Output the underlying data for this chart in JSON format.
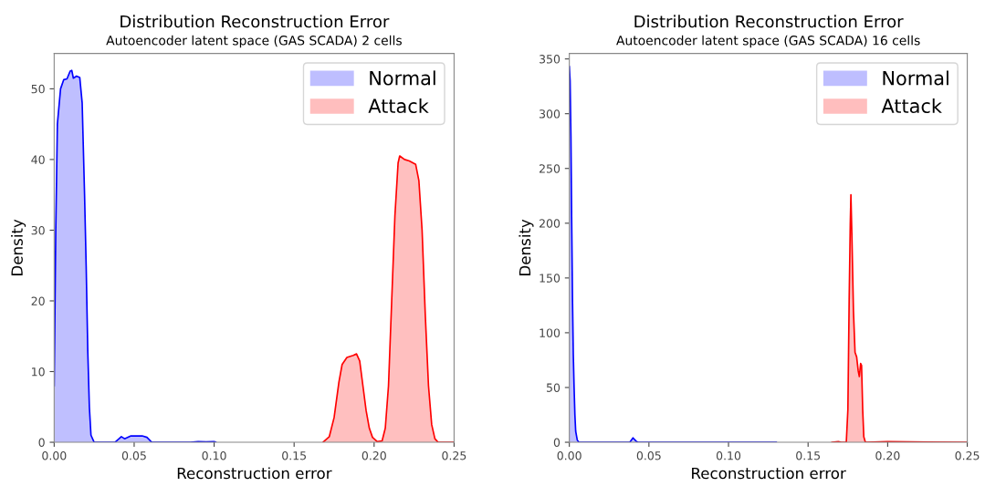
{
  "chart_data": [
    {
      "type": "area",
      "title": "Distribution Reconstruction Error",
      "subtitle": "Autoencoder latent space (GAS SCADA) 2 cells",
      "xlabel": "Reconstruction error",
      "ylabel": "Density",
      "xlim": [
        0,
        0.25
      ],
      "xticks": [
        {
          "value": 0,
          "label": "0.00"
        },
        {
          "value": 0.05,
          "label": "0.05"
        },
        {
          "value": 0.1,
          "label": "0.10"
        },
        {
          "value": 0.15,
          "label": "0.15"
        },
        {
          "value": 0.2,
          "label": "0.20"
        },
        {
          "value": 0.25,
          "label": "0.25"
        }
      ],
      "ylim": [
        0,
        55
      ],
      "yticks": [
        0,
        10,
        20,
        30,
        40,
        50
      ],
      "grid": false,
      "legend": "top right",
      "series": [
        {
          "name": "Normal",
          "color": "#0000ff",
          "x": [
            0,
            0.001,
            0.002,
            0.004,
            0.006,
            0.008,
            0.01,
            0.011,
            0.012,
            0.014,
            0.016,
            0.0175,
            0.019,
            0.02,
            0.021,
            0.022,
            0.023,
            0.025,
            0.038,
            0.042,
            0.044,
            0.048,
            0.052,
            0.055,
            0.058,
            0.061,
            0.085,
            0.09,
            0.095,
            0.1,
            0.101
          ],
          "values": [
            8,
            30,
            45,
            50,
            51.3,
            51.4,
            52.5,
            52.6,
            51.5,
            51.8,
            51.6,
            48,
            35,
            25,
            13,
            5,
            1,
            0,
            0,
            0.8,
            0.5,
            0.9,
            0.9,
            0.9,
            0.7,
            0,
            0,
            0.1,
            0.05,
            0.1,
            0
          ]
        },
        {
          "name": "Attack",
          "color": "#ff0000",
          "x": [
            0.168,
            0.172,
            0.175,
            0.178,
            0.18,
            0.183,
            0.187,
            0.189,
            0.191,
            0.193,
            0.195,
            0.197,
            0.199,
            0.202,
            0.205,
            0.207,
            0.209,
            0.211,
            0.213,
            0.215,
            0.216,
            0.219,
            0.222,
            0.226,
            0.228,
            0.23,
            0.232,
            0.234,
            0.236,
            0.238,
            0.24,
            0.25
          ],
          "values": [
            0,
            0.8,
            3.5,
            8.5,
            11,
            12,
            12.3,
            12.5,
            11.5,
            8,
            4.5,
            2,
            0.7,
            0.1,
            0.2,
            2,
            8,
            20,
            32,
            39.5,
            40.5,
            40,
            39.8,
            39.3,
            37,
            30,
            18,
            8,
            2.5,
            0.5,
            0,
            0
          ]
        }
      ]
    },
    {
      "type": "area",
      "title": "Distribution Reconstruction Error",
      "subtitle": "Autoencoder latent space (GAS SCADA) 16 cells",
      "xlabel": "Reconstruction error",
      "ylabel": "Density",
      "xlim": [
        0,
        0.25
      ],
      "xticks": [
        {
          "value": 0,
          "label": "0.00"
        },
        {
          "value": 0.05,
          "label": "0.05"
        },
        {
          "value": 0.1,
          "label": "0.10"
        },
        {
          "value": 0.15,
          "label": "0.15"
        },
        {
          "value": 0.2,
          "label": "0.20"
        },
        {
          "value": 0.25,
          "label": "0.25"
        }
      ],
      "ylim": [
        0,
        355
      ],
      "yticks": [
        0,
        50,
        100,
        150,
        200,
        250,
        300,
        350
      ],
      "grid": false,
      "legend": "top right",
      "series": [
        {
          "name": "Normal",
          "color": "#0000ff",
          "x": [
            0,
            0.0005,
            0.001,
            0.0015,
            0.002,
            0.0025,
            0.003,
            0.0035,
            0.004,
            0.005,
            0.006,
            0.038,
            0.04,
            0.042,
            0.043,
            0.13
          ],
          "values": [
            343,
            330,
            280,
            200,
            130,
            80,
            50,
            25,
            10,
            2,
            0,
            0,
            4,
            1,
            0,
            0
          ]
        },
        {
          "name": "Attack",
          "color": "#ff0000",
          "x": [
            0.165,
            0.169,
            0.171,
            0.174,
            0.175,
            0.1758,
            0.1765,
            0.1769,
            0.1775,
            0.1785,
            0.1795,
            0.1805,
            0.1815,
            0.1822,
            0.183,
            0.1836,
            0.1843,
            0.185,
            0.186,
            0.2,
            0.25
          ],
          "values": [
            0,
            0.5,
            0,
            0,
            30,
            130,
            200,
            226,
            190,
            120,
            82,
            78,
            65,
            60,
            72,
            70,
            30,
            5,
            0,
            0.5,
            0
          ]
        }
      ]
    }
  ]
}
